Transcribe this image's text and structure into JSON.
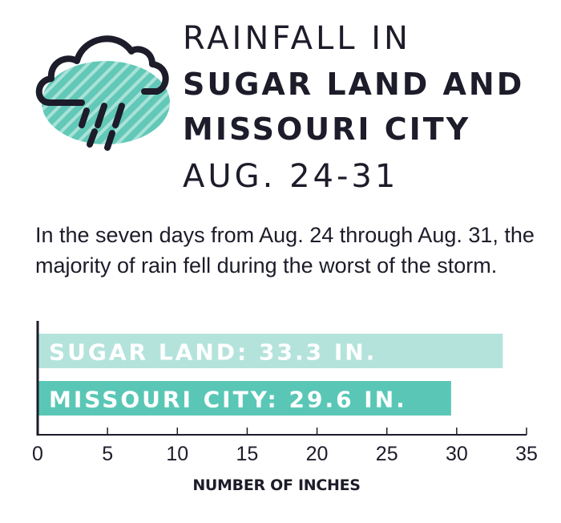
{
  "header": {
    "title_line1": "RAINFALL IN",
    "title_line2": "SUGAR LAND AND",
    "title_line3": "MISSOURI CITY",
    "title_line4": "AUG. 24-31",
    "icon": "rain-cloud-icon"
  },
  "description": "In the seven days from Aug. 24 through Aug. 31, the majority of rain fell during the worst of the storm.",
  "colors": {
    "sugar_land": "#b4e3dc",
    "missouri_city": "#5ac7b6",
    "cloud_fill": "#62c8b7",
    "ink": "#1c1c2a"
  },
  "chart_data": {
    "type": "bar",
    "orientation": "horizontal",
    "categories": [
      "SUGAR LAND: 33.3 IN.",
      "MISSOURI CITY: 29.6 IN."
    ],
    "values": [
      33.3,
      29.6
    ],
    "xlabel": "NUMBER OF INCHES",
    "ylabel": "",
    "xlim": [
      0,
      35
    ],
    "xticks": [
      "0",
      "5",
      "10",
      "15",
      "20",
      "25",
      "30",
      "35"
    ],
    "grid": false
  }
}
